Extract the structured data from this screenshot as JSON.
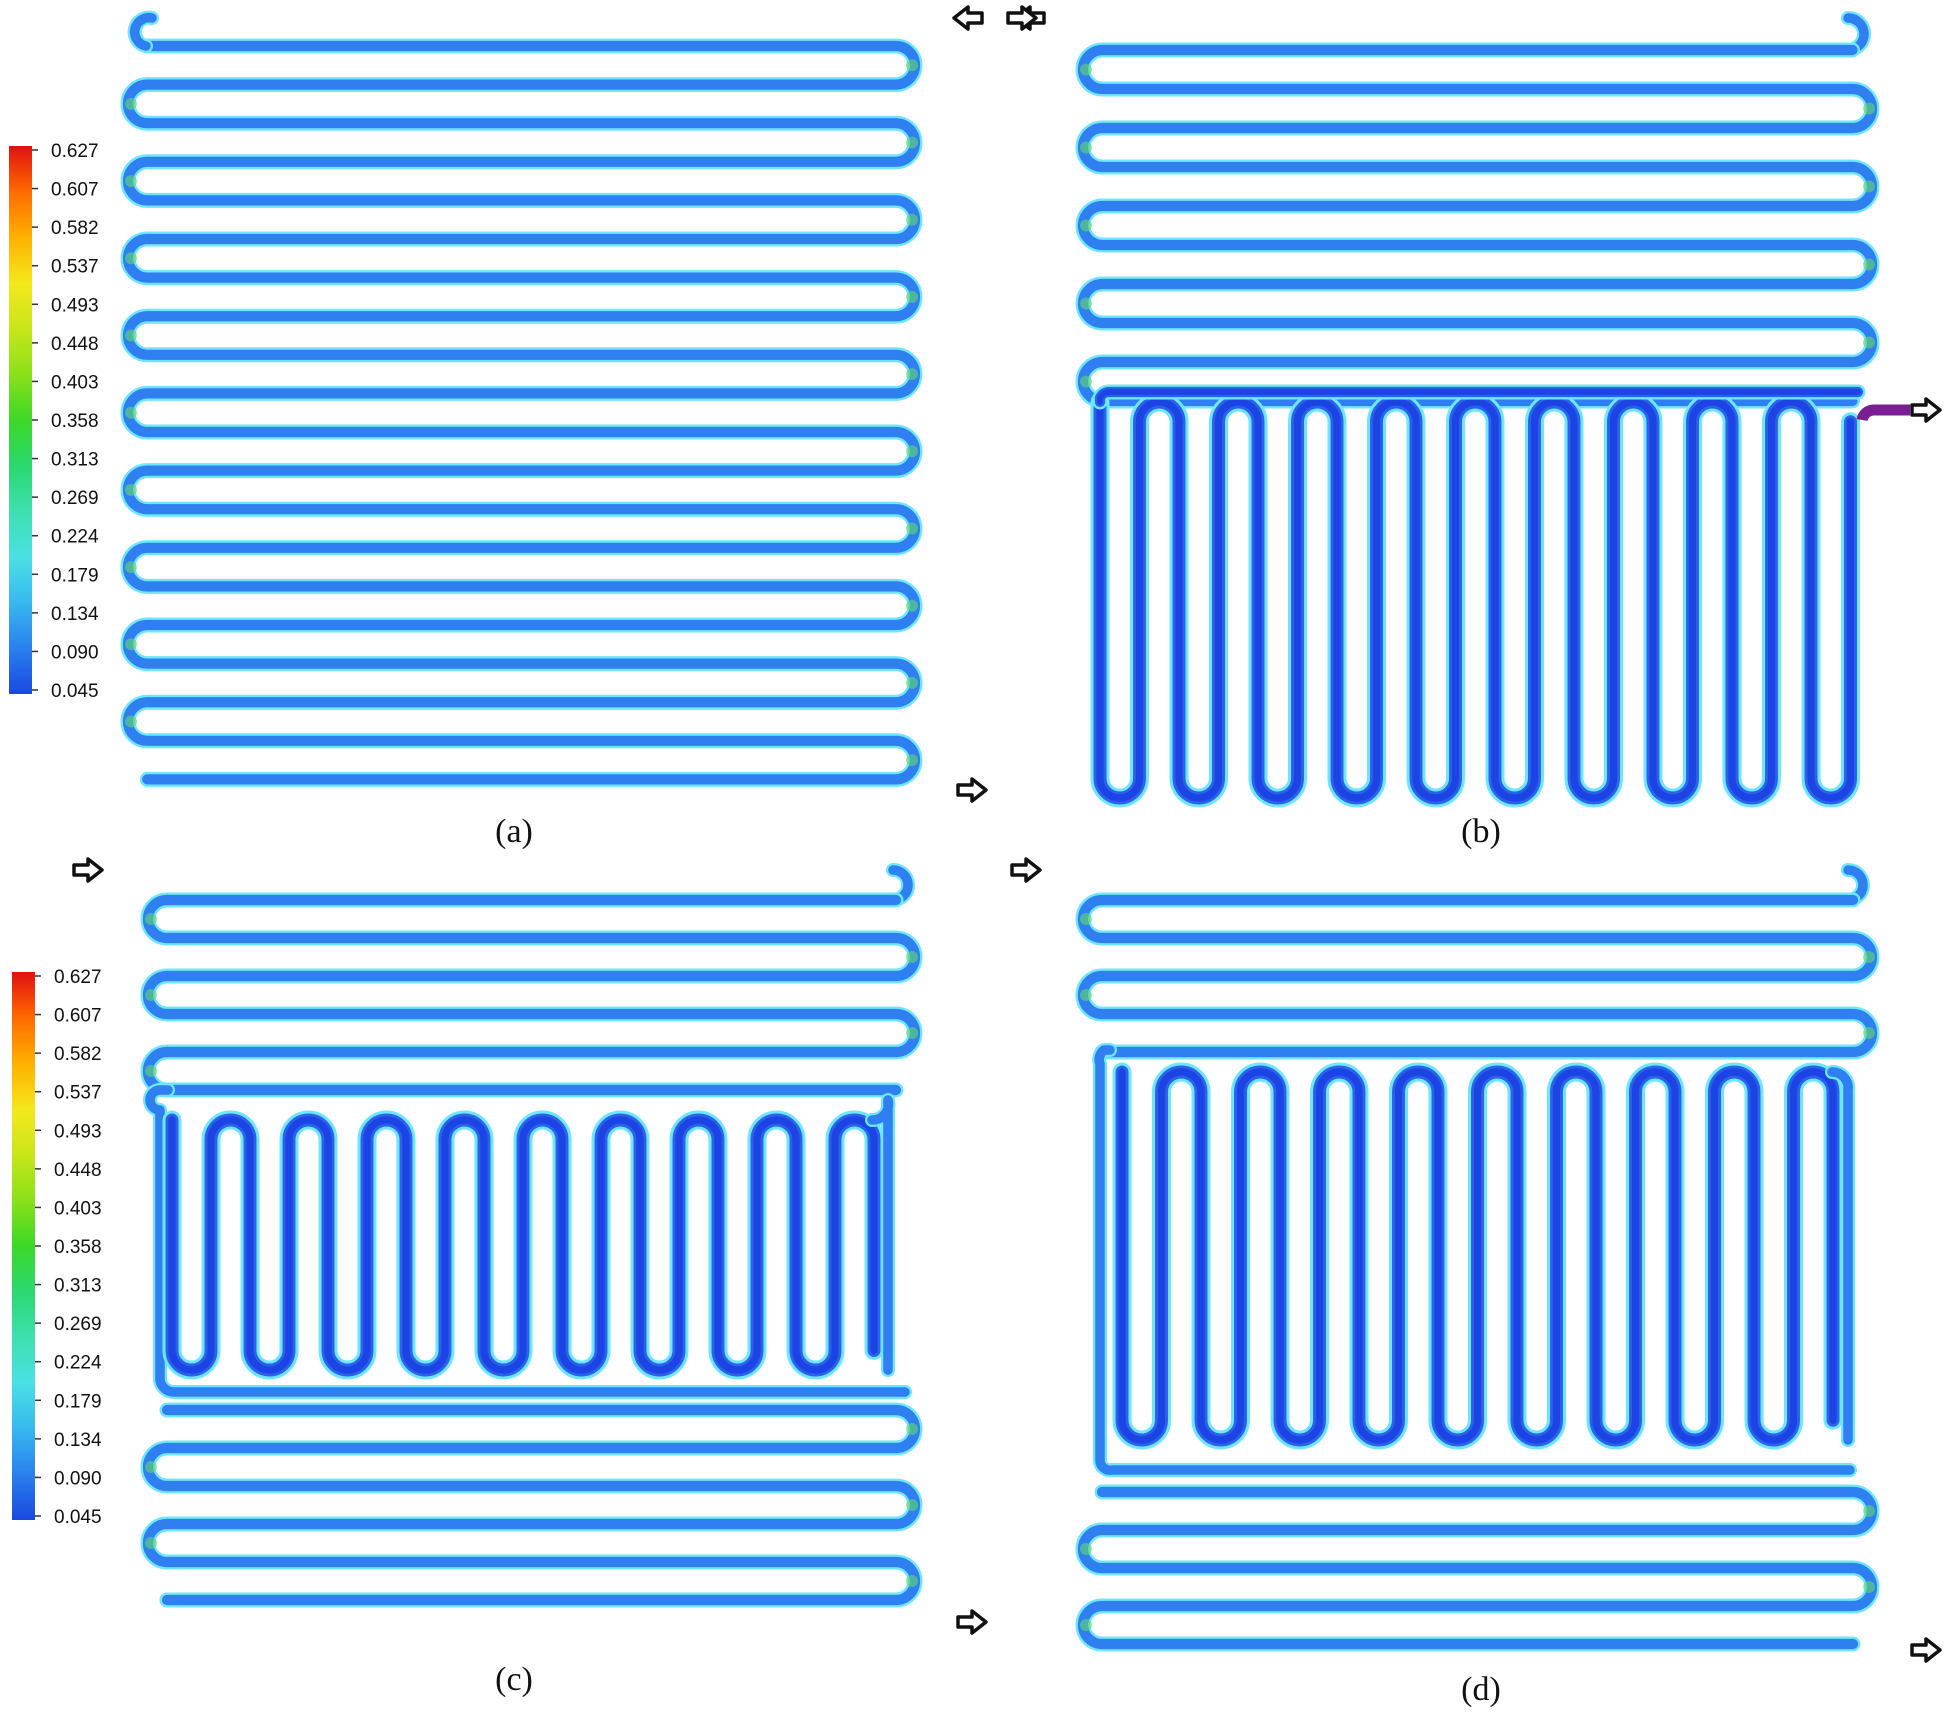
{
  "colorbar": {
    "ticks": [
      "0.627",
      "0.607",
      "0.582",
      "0.537",
      "0.493",
      "0.448",
      "0.403",
      "0.358",
      "0.313",
      "0.269",
      "0.224",
      "0.179",
      "0.134",
      "0.090",
      "0.045"
    ],
    "colors": [
      "#e01010",
      "#ff6a00",
      "#ffb000",
      "#f4e81c",
      "#c8e61a",
      "#8ae01a",
      "#3cd828",
      "#2ad870",
      "#3ee0b0",
      "#4ae0e4",
      "#38b8f0",
      "#2a80ee",
      "#1a48e0"
    ]
  },
  "panels": {
    "a": {
      "label": "(a)"
    },
    "b": {
      "label": "(b)"
    },
    "c": {
      "label": "(c)"
    },
    "d": {
      "label": "(d)"
    }
  },
  "colors": {
    "channel_light": "#2f7ff0",
    "channel_dark": "#1c44e4",
    "channel_edge": "#6ee6ff",
    "inlet": "#7a1e96",
    "turn_hot": "#63d86b"
  },
  "icons": {
    "inlet_arrow": "outline-arrow-icon"
  }
}
